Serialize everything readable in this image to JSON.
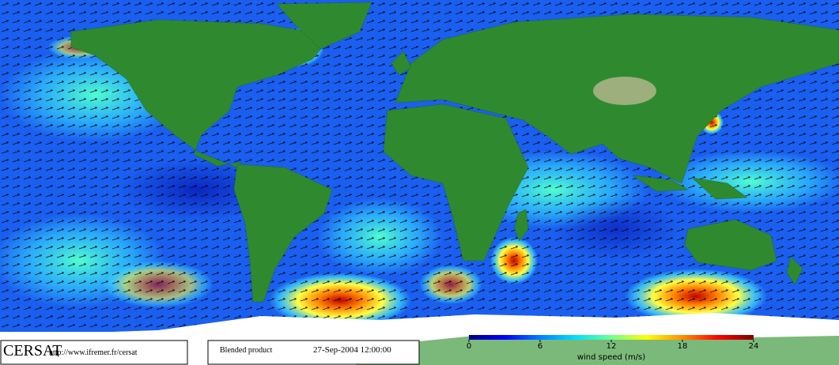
{
  "logo": "CERSAT",
  "url": "http://www.ifremer.fr/cersat",
  "product": "Blended product",
  "date": "27-Sep-2004 12:00:00",
  "colorbar": {
    "label": "wind speed (m/s)",
    "lim": [
      0,
      24
    ],
    "ticks": [
      0,
      6,
      12,
      18,
      24
    ],
    "colors": [
      "#00007f",
      "#0000ff",
      "#0080ff",
      "#00e0ff",
      "#70ff90",
      "#ffff00",
      "#ff9000",
      "#ff0000",
      "#800000"
    ]
  }
}
